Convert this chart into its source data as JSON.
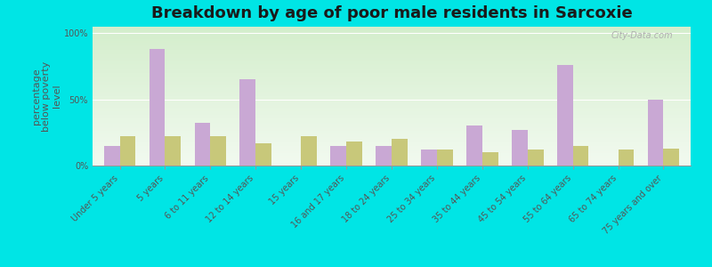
{
  "title": "Breakdown by age of poor male residents in Sarcoxie",
  "ylabel": "percentage\nbelow poverty\nlevel",
  "categories": [
    "Under 5 years",
    "5 years",
    "6 to 11 years",
    "12 to 14 years",
    "15 years",
    "16 and 17 years",
    "18 to 24 years",
    "25 to 34 years",
    "35 to 44 years",
    "45 to 54 years",
    "55 to 64 years",
    "65 to 74 years",
    "75 years and over"
  ],
  "sarcoxie": [
    15,
    88,
    32,
    65,
    0,
    15,
    15,
    12,
    30,
    27,
    76,
    0,
    50
  ],
  "missouri": [
    22,
    22,
    22,
    17,
    22,
    18,
    20,
    12,
    10,
    12,
    15,
    12,
    13
  ],
  "sarcoxie_color": "#c9a8d4",
  "missouri_color": "#c8c87a",
  "fig_bg_color": "#00e5e5",
  "plot_bg_color": "#eef8e4",
  "title_color": "#1a1a1a",
  "bar_width": 0.35,
  "ylim": [
    0,
    105
  ],
  "yticks": [
    0,
    50,
    100
  ],
  "ytick_labels": [
    "0%",
    "50%",
    "100%"
  ],
  "title_fontsize": 13,
  "axis_label_fontsize": 8,
  "tick_label_fontsize": 7,
  "legend_fontsize": 9,
  "label_color": "#555555",
  "watermark": "City-Data.com"
}
